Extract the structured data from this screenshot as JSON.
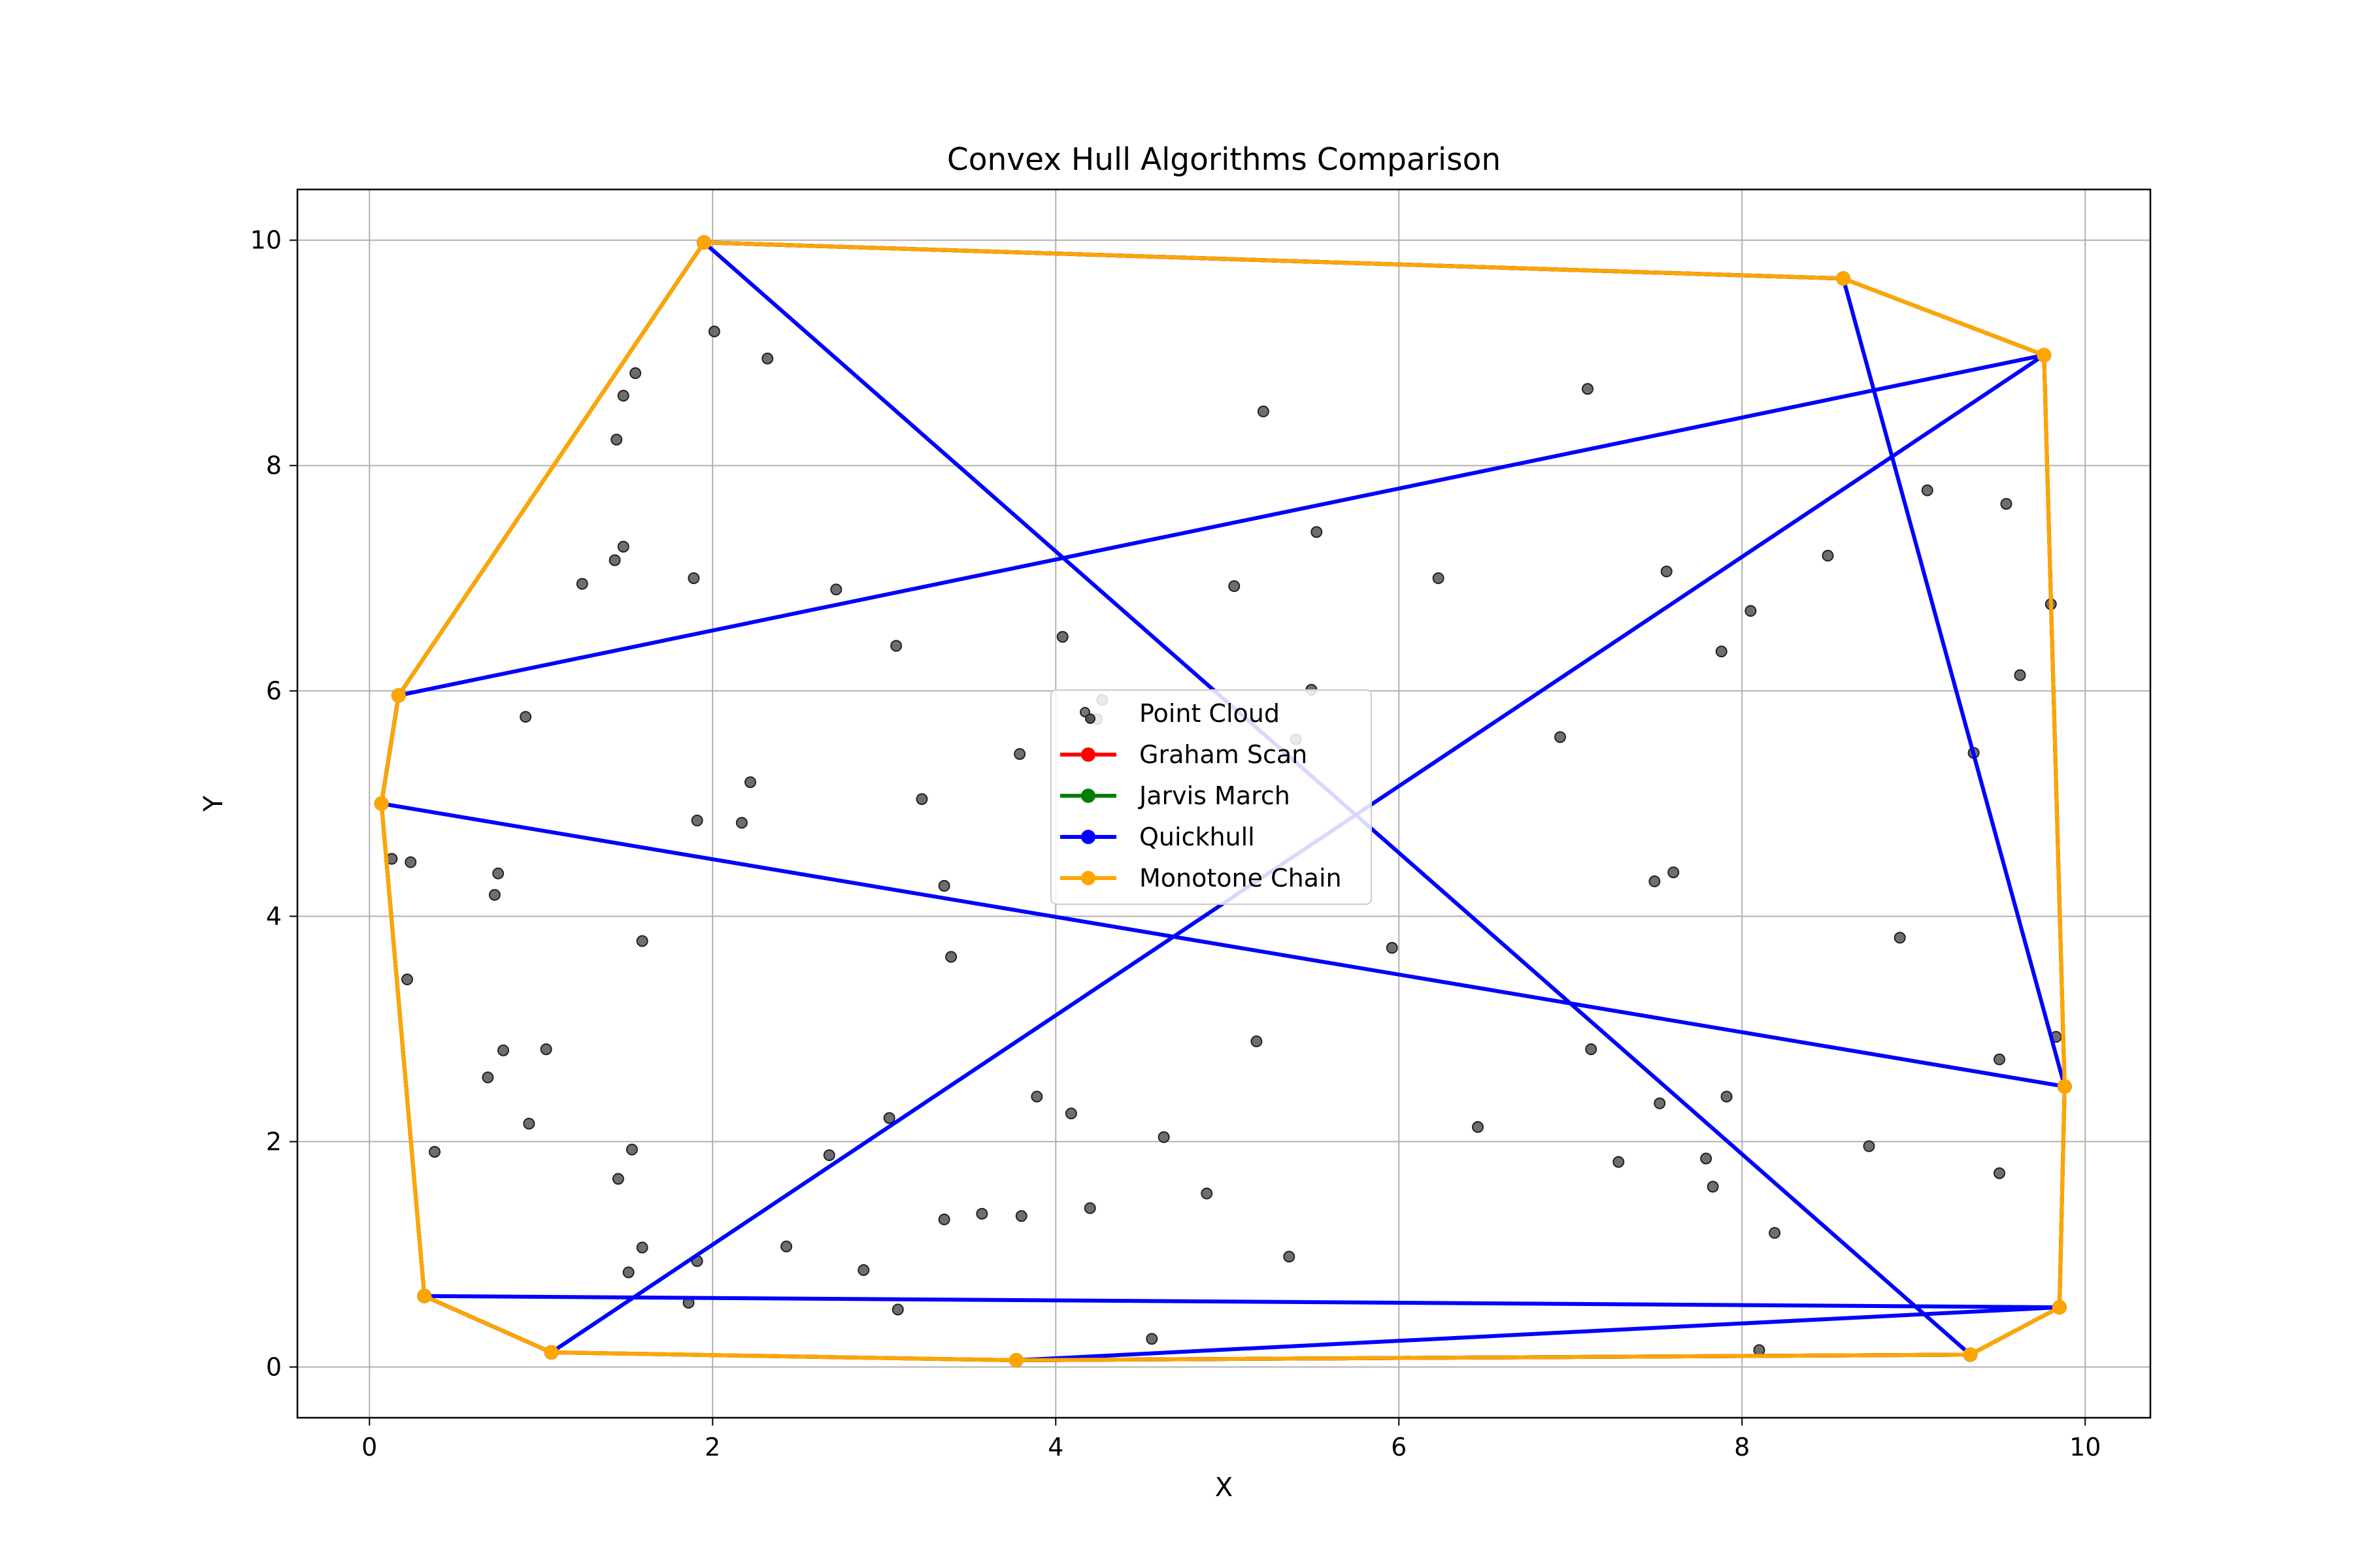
{
  "chart_data": {
    "type": "scatter",
    "title": "Convex Hull Algorithms Comparison",
    "xlabel": "X",
    "ylabel": "Y",
    "xlim": [
      -0.42,
      10.38
    ],
    "ylim": [
      -0.45,
      10.45
    ],
    "xticks": [
      0,
      2,
      4,
      6,
      8,
      10
    ],
    "yticks": [
      0,
      2,
      4,
      6,
      8,
      10
    ],
    "grid": true,
    "legend_position": "center",
    "points": [
      [
        1.95,
        9.98
      ],
      [
        2.01,
        9.19
      ],
      [
        2.32,
        8.95
      ],
      [
        1.55,
        8.82
      ],
      [
        1.48,
        8.62
      ],
      [
        1.44,
        8.23
      ],
      [
        5.21,
        8.48
      ],
      [
        7.1,
        8.68
      ],
      [
        9.76,
        8.98
      ],
      [
        8.59,
        9.66
      ],
      [
        1.48,
        7.28
      ],
      [
        1.43,
        7.16
      ],
      [
        1.24,
        6.95
      ],
      [
        1.89,
        7.0
      ],
      [
        2.72,
        6.9
      ],
      [
        5.04,
        6.93
      ],
      [
        5.52,
        7.41
      ],
      [
        6.23,
        7.0
      ],
      [
        7.56,
        7.06
      ],
      [
        8.5,
        7.2
      ],
      [
        9.08,
        7.78
      ],
      [
        9.54,
        7.66
      ],
      [
        9.8,
        6.77
      ],
      [
        8.05,
        6.71
      ],
      [
        7.88,
        6.35
      ],
      [
        9.62,
        6.14
      ],
      [
        3.07,
        6.4
      ],
      [
        4.04,
        6.48
      ],
      [
        5.49,
        6.01
      ],
      [
        5.4,
        5.57
      ],
      [
        0.17,
        5.96
      ],
      [
        0.91,
        5.77
      ],
      [
        4.27,
        5.92
      ],
      [
        4.24,
        5.75
      ],
      [
        3.79,
        5.44
      ],
      [
        6.94,
        5.59
      ],
      [
        9.35,
        5.45
      ],
      [
        0.07,
        5.0
      ],
      [
        2.22,
        5.19
      ],
      [
        1.91,
        4.85
      ],
      [
        2.17,
        4.83
      ],
      [
        3.22,
        5.04
      ],
      [
        0.13,
        4.51
      ],
      [
        0.24,
        4.48
      ],
      [
        0.75,
        4.38
      ],
      [
        0.73,
        4.19
      ],
      [
        3.35,
        4.27
      ],
      [
        7.49,
        4.31
      ],
      [
        7.6,
        4.39
      ],
      [
        1.59,
        3.78
      ],
      [
        3.39,
        3.64
      ],
      [
        5.96,
        3.72
      ],
      [
        8.92,
        3.81
      ],
      [
        0.22,
        3.44
      ],
      [
        0.78,
        2.81
      ],
      [
        1.03,
        2.82
      ],
      [
        0.69,
        2.57
      ],
      [
        5.17,
        2.89
      ],
      [
        7.12,
        2.82
      ],
      [
        9.5,
        2.73
      ],
      [
        9.83,
        2.93
      ],
      [
        9.88,
        2.49
      ],
      [
        3.89,
        2.4
      ],
      [
        4.09,
        2.25
      ],
      [
        3.03,
        2.21
      ],
      [
        0.93,
        2.16
      ],
      [
        1.53,
        1.93
      ],
      [
        0.38,
        1.91
      ],
      [
        2.68,
        1.88
      ],
      [
        4.63,
        2.04
      ],
      [
        6.46,
        2.13
      ],
      [
        7.52,
        2.34
      ],
      [
        7.91,
        2.4
      ],
      [
        8.74,
        1.96
      ],
      [
        7.28,
        1.82
      ],
      [
        7.79,
        1.85
      ],
      [
        7.83,
        1.6
      ],
      [
        9.5,
        1.72
      ],
      [
        1.45,
        1.67
      ],
      [
        4.88,
        1.54
      ],
      [
        3.35,
        1.31
      ],
      [
        3.57,
        1.36
      ],
      [
        3.8,
        1.34
      ],
      [
        4.2,
        1.41
      ],
      [
        8.19,
        1.19
      ],
      [
        1.59,
        1.06
      ],
      [
        2.43,
        1.07
      ],
      [
        1.91,
        0.94
      ],
      [
        1.51,
        0.84
      ],
      [
        2.88,
        0.86
      ],
      [
        5.36,
        0.98
      ],
      [
        0.32,
        0.63
      ],
      [
        1.86,
        0.57
      ],
      [
        3.08,
        0.51
      ],
      [
        9.85,
        0.53
      ],
      [
        4.56,
        0.25
      ],
      [
        1.06,
        0.13
      ],
      [
        3.77,
        0.06
      ],
      [
        8.1,
        0.15
      ],
      [
        9.33,
        0.11
      ]
    ],
    "series": [
      {
        "name": "Graham Scan",
        "color": "#ff0000",
        "x": [
          1.06,
          3.77,
          9.33,
          9.85,
          9.88,
          9.76,
          8.59,
          1.95,
          0.17,
          0.07,
          0.32,
          1.06
        ],
        "y": [
          0.13,
          0.06,
          0.11,
          0.53,
          2.49,
          8.98,
          9.66,
          9.98,
          5.96,
          5.0,
          0.63,
          0.13
        ]
      },
      {
        "name": "Jarvis March",
        "color": "#008000",
        "x": [
          1.06,
          3.77,
          9.33,
          9.85,
          9.88,
          9.76,
          8.59,
          1.95,
          0.17,
          0.07,
          0.32,
          1.06
        ],
        "y": [
          0.13,
          0.06,
          0.11,
          0.53,
          2.49,
          8.98,
          9.66,
          9.98,
          5.96,
          5.0,
          0.63,
          0.13
        ]
      },
      {
        "name": "Quickhull",
        "color": "#0000ff",
        "x": [
          1.06,
          9.76,
          0.17,
          0.07,
          9.88,
          8.59,
          1.95,
          9.33,
          3.77,
          9.85,
          0.32,
          1.06
        ],
        "y": [
          0.13,
          8.98,
          5.96,
          5.0,
          2.49,
          9.66,
          9.98,
          0.11,
          0.06,
          0.53,
          0.63,
          0.13
        ]
      },
      {
        "name": "Monotone Chain",
        "color": "#ffa500",
        "x": [
          1.06,
          3.77,
          9.33,
          9.85,
          9.88,
          9.76,
          8.59,
          1.95,
          0.17,
          0.07,
          0.32,
          1.06
        ],
        "y": [
          0.13,
          0.06,
          0.11,
          0.53,
          2.49,
          8.98,
          9.66,
          9.98,
          5.96,
          5.0,
          0.63,
          0.13
        ]
      }
    ],
    "legend": [
      "Point Cloud",
      "Graham Scan",
      "Jarvis March",
      "Quickhull",
      "Monotone Chain"
    ],
    "point_color": "#555555"
  }
}
